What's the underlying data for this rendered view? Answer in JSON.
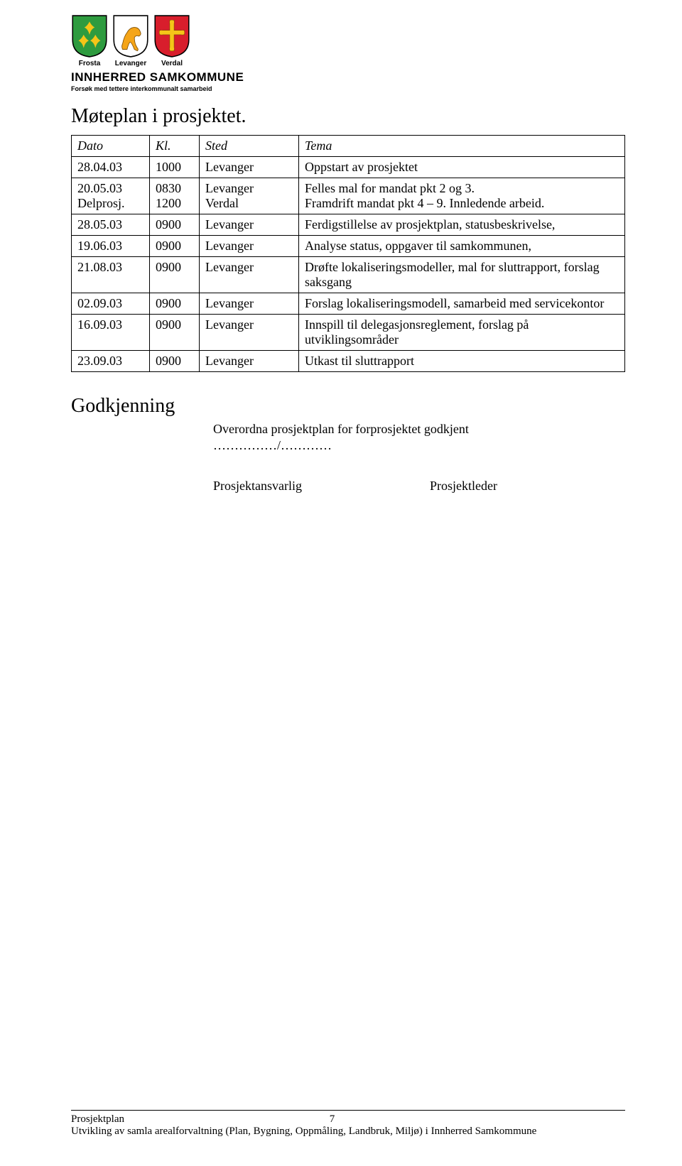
{
  "header": {
    "shields": [
      {
        "name": "Frosta",
        "bg": "#2e9b3f",
        "emblem": "lily"
      },
      {
        "name": "Levanger",
        "bg": "#ffffff",
        "emblem": "horse"
      },
      {
        "name": "Verdal",
        "bg": "#d81e2c",
        "emblem": "cross"
      }
    ],
    "brand": "INNHERRED SAMKOMMUNE",
    "brand_sub": "Forsøk med tettere interkommunalt samarbeid"
  },
  "title": "Møteplan i prosjektet.",
  "columns": [
    "Dato",
    "Kl.",
    "Sted",
    "Tema"
  ],
  "rows": [
    {
      "dato": "28.04.03",
      "kl": "1000",
      "sted": "Levanger",
      "tema": "Oppstart av prosjektet"
    },
    {
      "dato": "20.05.03\nDelprosj.",
      "kl": "0830\n1200",
      "sted": "Levanger\nVerdal",
      "tema": "Felles mal for mandat pkt 2 og 3.\nFramdrift mandat pkt 4 – 9. Innledende arbeid."
    },
    {
      "dato": "28.05.03",
      "kl": "0900",
      "sted": "Levanger",
      "tema": "Ferdigstillelse av prosjektplan, statusbeskrivelse,"
    },
    {
      "dato": "19.06.03",
      "kl": "0900",
      "sted": "Levanger",
      "tema": "Analyse status, oppgaver til samkommunen,"
    },
    {
      "dato": "21.08.03",
      "kl": "0900",
      "sted": "Levanger",
      "tema": "Drøfte lokaliseringsmodeller, mal for sluttrapport, forslag saksgang"
    },
    {
      "dato": "02.09.03",
      "kl": "0900",
      "sted": "Levanger",
      "tema": "Forslag lokaliseringsmodell, samarbeid med servicekontor"
    },
    {
      "dato": "16.09.03",
      "kl": "0900",
      "sted": "Levanger",
      "tema": "Innspill til delegasjonsreglement, forslag på utviklingsområder"
    },
    {
      "dato": "23.09.03",
      "kl": "0900",
      "sted": "Levanger",
      "tema": "Utkast til sluttrapport"
    }
  ],
  "approval": {
    "title": "Godkjenning",
    "line": "Overordna prosjektplan for forprosjektet godkjent",
    "dots": "……………/…………",
    "sign_left": "Prosjektansvarlig",
    "sign_right": "Prosjektleder"
  },
  "footer": {
    "left": "Prosjektplan",
    "page": "7",
    "line2": "Utvikling av samla arealforvaltning (Plan, Bygning, Oppmåling, Landbruk, Miljø) i Innherred Samkommune"
  }
}
